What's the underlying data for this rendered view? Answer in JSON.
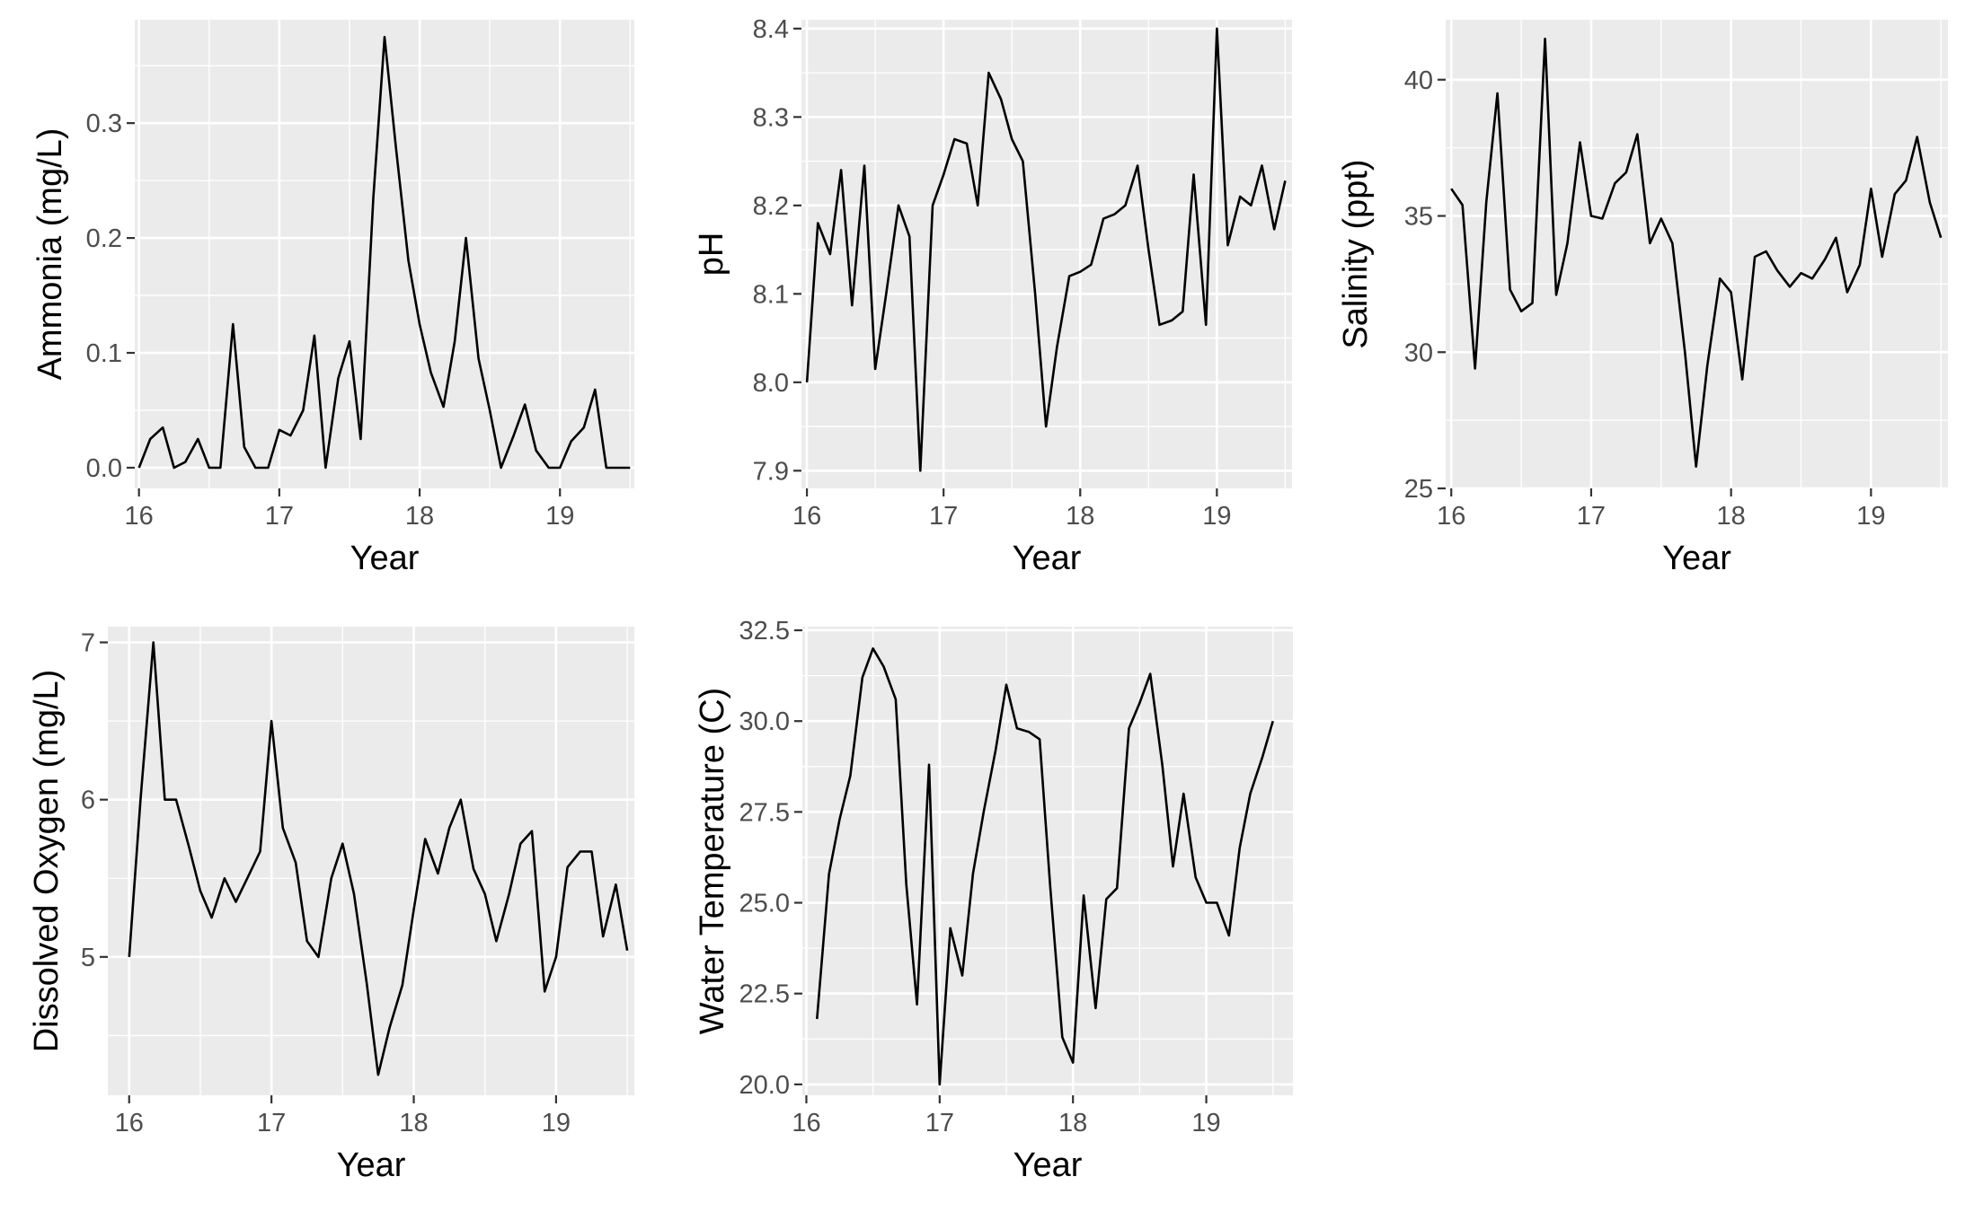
{
  "chart_data": [
    {
      "type": "line",
      "xlabel": "Year",
      "ylabel": "Ammonia (mg/L)",
      "xlim": [
        15.97,
        19.53
      ],
      "ylim": [
        -0.018,
        0.39
      ],
      "xticks": [
        16,
        17,
        18,
        19
      ],
      "yticks": [
        0.0,
        0.1,
        0.2,
        0.3
      ],
      "ytick_labels": [
        "0.0",
        "0.1",
        "0.2",
        "0.3"
      ],
      "x": [
        16.0,
        16.08,
        16.17,
        16.25,
        16.33,
        16.42,
        16.5,
        16.58,
        16.67,
        16.75,
        16.83,
        16.92,
        17.0,
        17.08,
        17.17,
        17.25,
        17.33,
        17.42,
        17.5,
        17.58,
        17.67,
        17.75,
        17.83,
        17.92,
        18.0,
        18.08,
        18.17,
        18.25,
        18.33,
        18.42,
        18.5,
        18.58,
        18.67,
        18.75,
        18.83,
        18.92,
        19.0,
        19.08,
        19.17,
        19.25,
        19.33,
        19.42,
        19.5
      ],
      "y": [
        0.0,
        0.025,
        0.035,
        0.0,
        0.005,
        0.025,
        0.0,
        0.0,
        0.125,
        0.018,
        0.0,
        0.0,
        0.033,
        0.028,
        0.05,
        0.115,
        0.0,
        0.078,
        0.11,
        0.025,
        0.235,
        0.375,
        0.28,
        0.18,
        0.125,
        0.083,
        0.053,
        0.11,
        0.2,
        0.095,
        0.05,
        0.0,
        0.028,
        0.055,
        0.015,
        0.0,
        0.0,
        0.023,
        0.035,
        0.068,
        0.0,
        0.0,
        0.0
      ]
    },
    {
      "type": "line",
      "xlabel": "Year",
      "ylabel": "pH",
      "xlim": [
        15.96,
        19.55
      ],
      "ylim": [
        7.88,
        8.41
      ],
      "xticks": [
        16,
        17,
        18,
        19
      ],
      "yticks": [
        7.9,
        8.0,
        8.1,
        8.2,
        8.3,
        8.4
      ],
      "ytick_labels": [
        "7.9",
        "8.0",
        "8.1",
        "8.2",
        "8.3",
        "8.4"
      ],
      "x": [
        16.0,
        16.08,
        16.17,
        16.25,
        16.33,
        16.42,
        16.5,
        16.58,
        16.67,
        16.75,
        16.83,
        16.92,
        17.0,
        17.08,
        17.17,
        17.25,
        17.33,
        17.42,
        17.5,
        17.58,
        17.67,
        17.75,
        17.83,
        17.92,
        18.0,
        18.08,
        18.17,
        18.25,
        18.33,
        18.42,
        18.5,
        18.58,
        18.67,
        18.75,
        18.83,
        18.92,
        19.0,
        19.08,
        19.17,
        19.25,
        19.33,
        19.42,
        19.5
      ],
      "y": [
        8.0,
        8.18,
        8.145,
        8.24,
        8.087,
        8.245,
        8.015,
        8.1,
        8.2,
        8.165,
        7.9,
        8.2,
        8.235,
        8.275,
        8.27,
        8.2,
        8.35,
        8.32,
        8.275,
        8.25,
        8.1,
        7.95,
        8.04,
        8.12,
        8.125,
        8.133,
        8.185,
        8.19,
        8.2,
        8.245,
        8.15,
        8.065,
        8.07,
        8.08,
        8.235,
        8.065,
        8.4,
        8.155,
        8.21,
        8.2,
        8.245,
        8.173,
        8.228
      ]
    },
    {
      "type": "line",
      "xlabel": "Year",
      "ylabel": "Salinity (ppt)",
      "xlim": [
        15.96,
        19.55
      ],
      "ylim": [
        25.0,
        42.2
      ],
      "xticks": [
        16,
        17,
        18,
        19
      ],
      "yticks": [
        25,
        30,
        35,
        40
      ],
      "ytick_labels": [
        "25",
        "30",
        "35",
        "40"
      ],
      "x": [
        16.0,
        16.08,
        16.17,
        16.25,
        16.33,
        16.42,
        16.5,
        16.58,
        16.67,
        16.75,
        16.83,
        16.92,
        17.0,
        17.08,
        17.17,
        17.25,
        17.33,
        17.42,
        17.5,
        17.58,
        17.67,
        17.75,
        17.83,
        17.92,
        18.0,
        18.08,
        18.17,
        18.25,
        18.33,
        18.42,
        18.5,
        18.58,
        18.67,
        18.75,
        18.83,
        18.92,
        19.0,
        19.08,
        19.17,
        19.25,
        19.33,
        19.42,
        19.5
      ],
      "y": [
        36.0,
        35.4,
        29.4,
        35.5,
        39.5,
        32.3,
        31.5,
        31.8,
        41.5,
        32.1,
        34.0,
        37.7,
        35.0,
        34.9,
        36.2,
        36.6,
        38.0,
        34.0,
        34.9,
        34.0,
        30.0,
        25.8,
        29.5,
        32.7,
        32.2,
        29.0,
        33.5,
        33.7,
        33.0,
        32.4,
        32.9,
        32.7,
        33.4,
        34.2,
        32.2,
        33.2,
        36.0,
        33.5,
        35.8,
        36.3,
        37.9,
        35.5,
        34.2
      ]
    },
    {
      "type": "line",
      "xlabel": "Year",
      "ylabel": "Dissolved Oxygen (mg/L)",
      "xlim": [
        15.85,
        19.55
      ],
      "ylim": [
        4.12,
        7.1
      ],
      "xticks": [
        16,
        17,
        18,
        19
      ],
      "yticks": [
        5,
        6,
        7
      ],
      "ytick_labels": [
        "5",
        "6",
        "7"
      ],
      "x": [
        16.0,
        16.08,
        16.17,
        16.25,
        16.33,
        16.42,
        16.5,
        16.58,
        16.67,
        16.75,
        16.83,
        16.92,
        17.0,
        17.08,
        17.17,
        17.25,
        17.33,
        17.42,
        17.5,
        17.58,
        17.67,
        17.75,
        17.83,
        17.92,
        18.0,
        18.08,
        18.17,
        18.25,
        18.33,
        18.42,
        18.5,
        18.58,
        18.67,
        18.75,
        18.83,
        18.92,
        19.0,
        19.08,
        19.17,
        19.25,
        19.33,
        19.42,
        19.5
      ],
      "y": [
        5.0,
        6.0,
        7.0,
        6.0,
        6.0,
        5.7,
        5.42,
        5.25,
        5.5,
        5.35,
        5.5,
        5.67,
        6.5,
        5.82,
        5.6,
        5.1,
        5.0,
        5.5,
        5.72,
        5.4,
        4.83,
        4.25,
        4.55,
        4.82,
        5.3,
        5.75,
        5.53,
        5.82,
        6.0,
        5.56,
        5.4,
        5.1,
        5.4,
        5.72,
        5.8,
        4.78,
        5.0,
        5.57,
        5.67,
        5.67,
        5.13,
        5.46,
        5.04
      ]
    },
    {
      "type": "line",
      "xlabel": "Year",
      "ylabel": "Water Temperature (C)",
      "xlim": [
        15.97,
        19.65
      ],
      "ylim": [
        19.7,
        32.6
      ],
      "xticks": [
        16,
        17,
        18,
        19
      ],
      "yticks": [
        20.0,
        22.5,
        25.0,
        27.5,
        30.0,
        32.5
      ],
      "ytick_labels": [
        "20.0",
        "22.5",
        "25.0",
        "27.5",
        "30.0",
        "32.5"
      ],
      "x": [
        16.08,
        16.17,
        16.25,
        16.33,
        16.42,
        16.5,
        16.58,
        16.67,
        16.75,
        16.83,
        16.92,
        17.0,
        17.08,
        17.17,
        17.25,
        17.33,
        17.42,
        17.5,
        17.58,
        17.67,
        17.75,
        17.83,
        17.92,
        18.0,
        18.08,
        18.17,
        18.25,
        18.33,
        18.42,
        18.5,
        18.58,
        18.67,
        18.75,
        18.83,
        18.92,
        19.0,
        19.08,
        19.17,
        19.25,
        19.33,
        19.42,
        19.5
      ],
      "y": [
        21.8,
        25.8,
        27.3,
        28.5,
        31.2,
        32.0,
        31.5,
        30.6,
        25.5,
        22.2,
        28.8,
        20.0,
        24.3,
        23.0,
        25.8,
        27.5,
        29.2,
        31.0,
        29.8,
        29.7,
        29.5,
        25.4,
        21.3,
        20.6,
        25.2,
        22.1,
        25.1,
        25.4,
        29.8,
        30.5,
        31.3,
        28.8,
        26.0,
        28.0,
        25.7,
        25.0,
        25.0,
        24.1,
        26.5,
        28.0,
        29.0,
        30.0
      ]
    }
  ]
}
